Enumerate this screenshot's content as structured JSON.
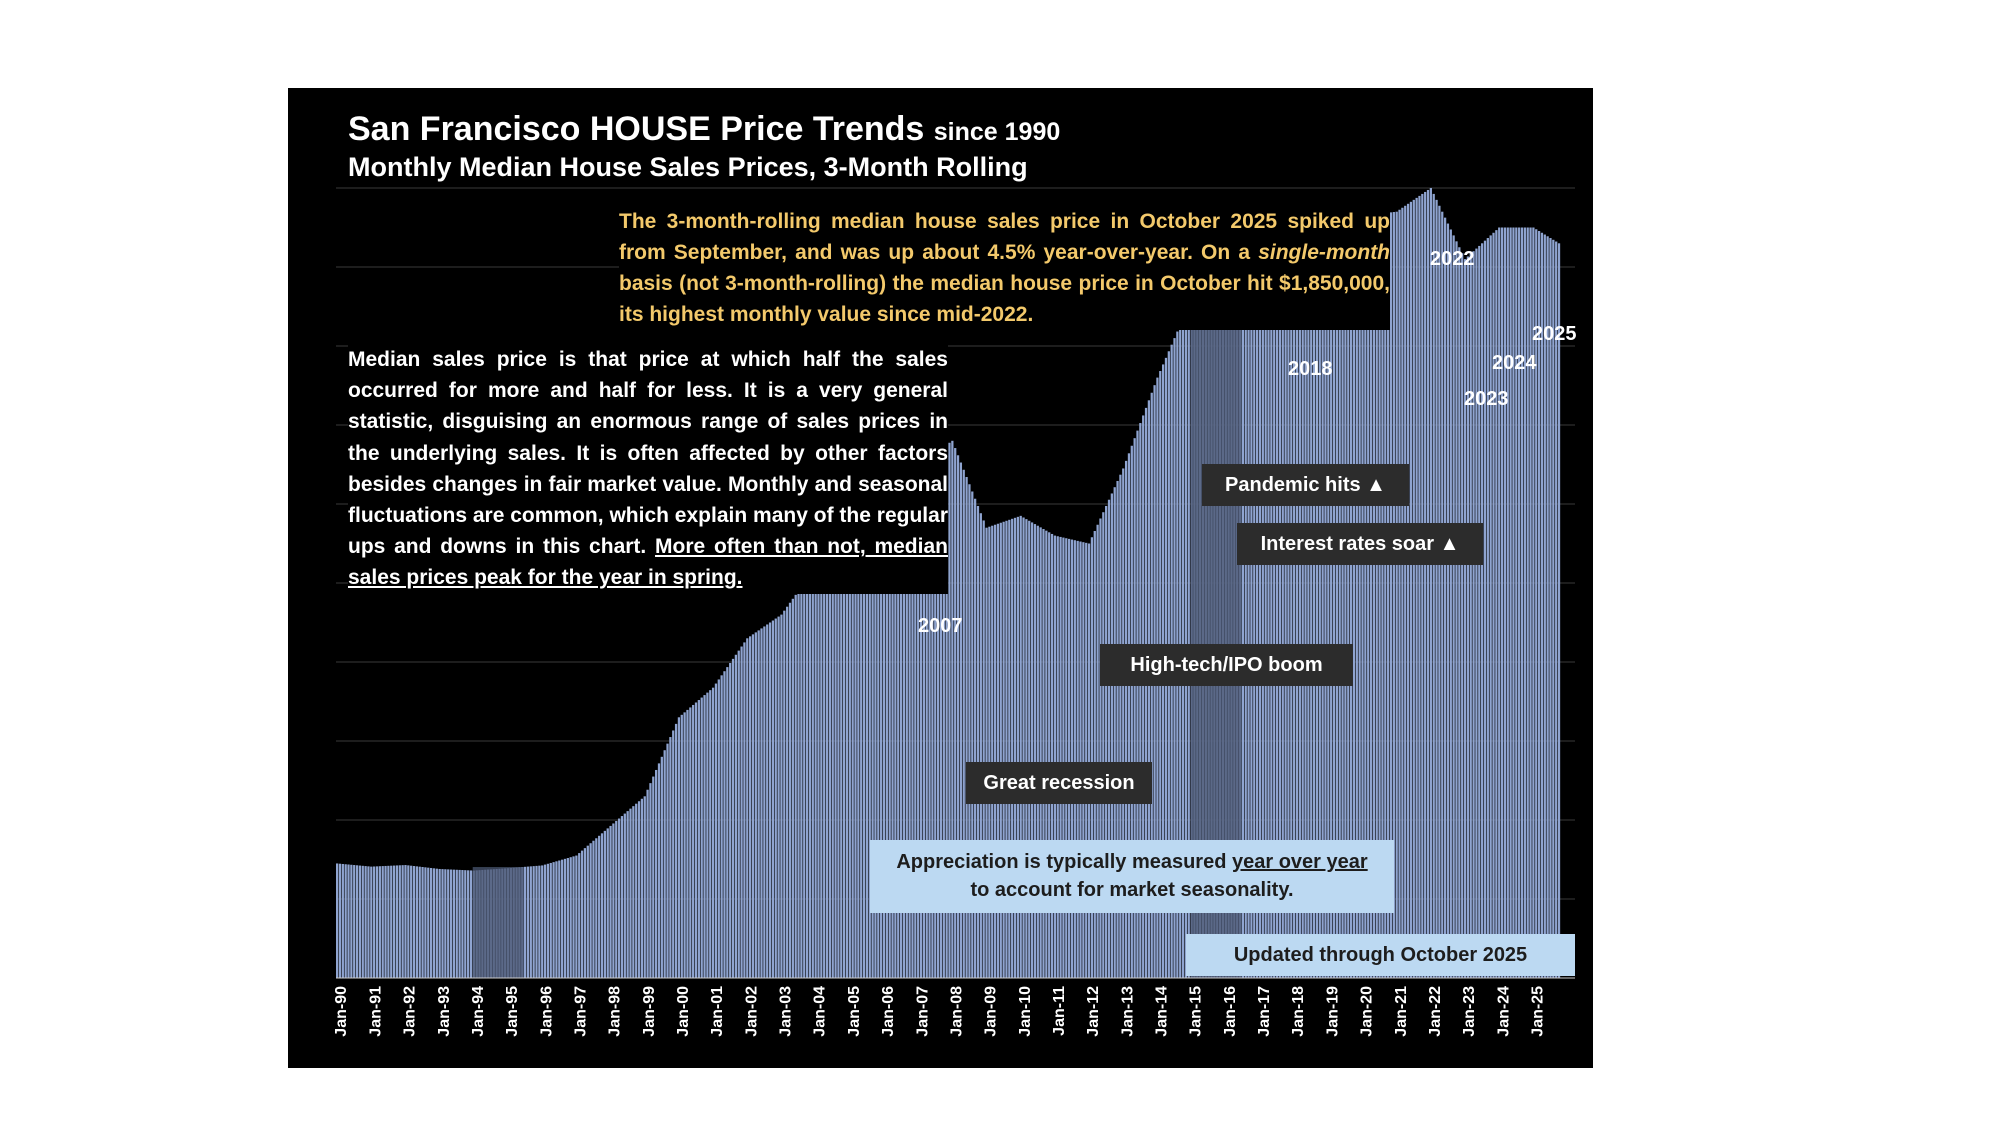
{
  "title": {
    "main": "San Francisco HOUSE Price Trends",
    "since": "since 1990",
    "subtitle": "Monthly Median House Sales Prices, 3-Month Rolling"
  },
  "callout": {
    "p1": "The 3-month-rolling median house sales price in October 2025 spiked up from September, and was up about 4.5% year-over-year. On a",
    "p2_italic": "single-month",
    "p3": "basis (not 3-month-rolling) the median house price in October hit $1,850,000, its highest monthly value since mid-2022."
  },
  "note": {
    "p1": "Median sales price is that price at which half the sales occurred for more and half for less. It is a very general statistic, disguising an enormous range of sales prices in the underlying sales. It is often affected by other factors besides changes in fair market value. Monthly and seasonal fluctuations are common, which explain many of the regular ups and downs in this chart.",
    "p2_underlined": "More often than not, median sales prices peak for the year in spring."
  },
  "annotations": {
    "pandemic": "Pandemic hits ▲",
    "interest": "Interest rates soar ▲",
    "hightech": "High-tech/IPO boom",
    "recession": "Great recession"
  },
  "peak_labels": {
    "y2007": "2007",
    "y2018": "2018",
    "y2022": "2022",
    "y2023": "2023",
    "y2024": "2024",
    "y2025": "2025"
  },
  "appreciation": {
    "line1a": "Appreciation is typically measured",
    "line1b": "year over year",
    "line2": "to account for market seasonality."
  },
  "updated": "Updated through October 2025",
  "colors": {
    "background": "#000000",
    "bar": "#8fa4d0",
    "bar_divider": "#5a6a8e",
    "shade": "#4a5570",
    "callout_text": "#f3c96b",
    "annotation_box": "#2c2c2c",
    "info_box": "#bcd9f2",
    "gridline": "#3a3a3a"
  },
  "chart_data": {
    "type": "bar",
    "title": "San Francisco HOUSE Price Trends since 1990",
    "subtitle": "Monthly Median House Sales Prices, 3-Month Rolling",
    "start": "Jan-90",
    "frequency": "monthly",
    "end": "Oct-25",
    "grid": true,
    "y_axis_labels_shown": false,
    "ylim": [
      0,
      2000000
    ],
    "categories": [
      "Jan-90",
      "Jan-91",
      "Jan-92",
      "Jan-93",
      "Jan-94",
      "Jan-95",
      "Jan-96",
      "Jan-97",
      "Jan-98",
      "Jan-99",
      "Jan-00",
      "Jan-01",
      "Jan-02",
      "Jan-03",
      "Jan-04",
      "Jan-05",
      "Jan-06",
      "Jan-07",
      "Jan-08",
      "Jan-09",
      "Jan-10",
      "Jan-11",
      "Jan-12",
      "Jan-13",
      "Jan-14",
      "Jan-15",
      "Jan-16",
      "Jan-17",
      "Jan-18",
      "Jan-19",
      "Jan-20",
      "Jan-21",
      "Jan-22",
      "Jan-23",
      "Jan-24",
      "Jan-25",
      "Oct-25"
    ],
    "values": [
      290000,
      282000,
      286000,
      276000,
      272000,
      278000,
      285000,
      310000,
      385000,
      460000,
      660000,
      735000,
      860000,
      920000,
      1040000,
      1250000,
      1290000,
      1300000,
      1360000,
      1140000,
      1170000,
      1120000,
      1100000,
      1290000,
      1520000,
      1720000,
      1760000,
      1880000,
      1900000,
      1860000,
      1930000,
      1940000,
      2000000,
      1820000,
      1900000,
      1900000,
      1860000
    ],
    "shaded_periods": [
      {
        "start": "Jan-94",
        "end": "Jun-95"
      },
      {
        "start": "Jan-15",
        "end": "Jun-16"
      }
    ]
  }
}
